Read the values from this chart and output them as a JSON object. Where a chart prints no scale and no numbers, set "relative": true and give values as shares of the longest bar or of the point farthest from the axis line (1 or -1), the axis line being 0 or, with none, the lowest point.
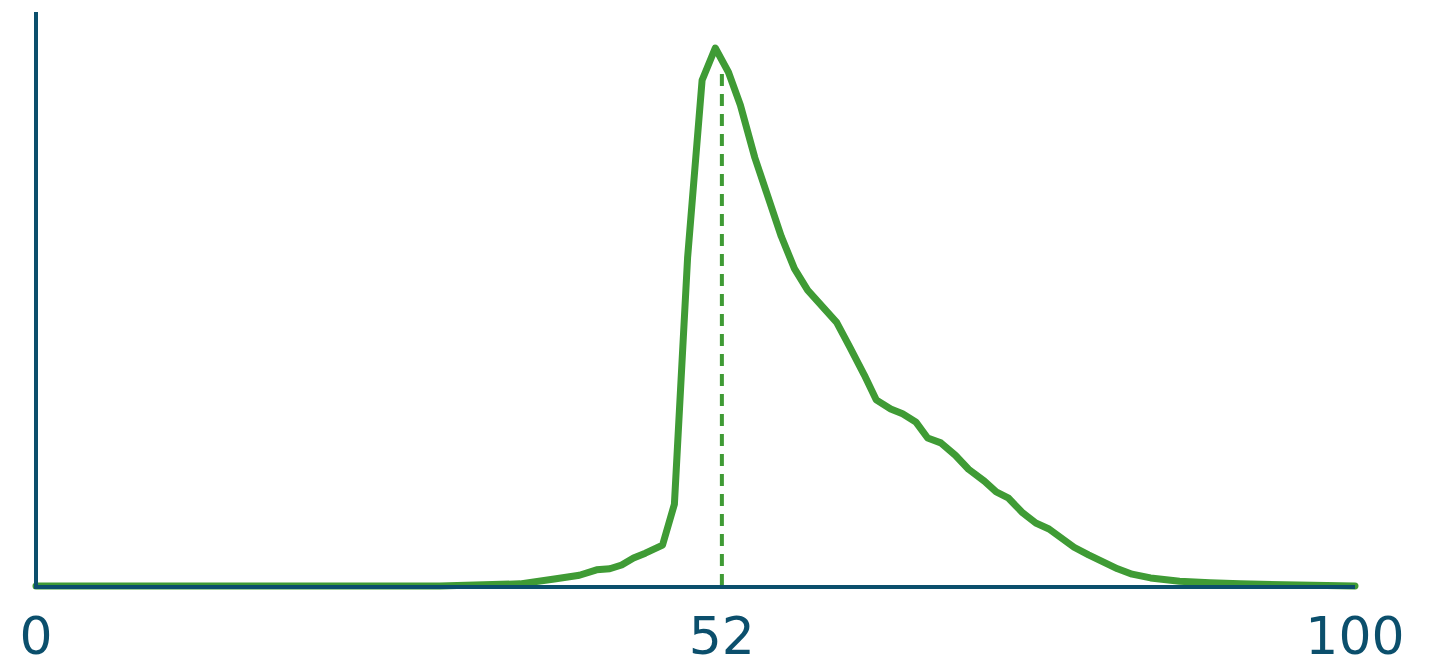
{
  "chart_data": {
    "type": "line",
    "relative": true,
    "xlim": [
      0,
      100
    ],
    "xticks": [
      0,
      52,
      100
    ],
    "x": [
      0,
      30.6,
      36.7,
      39.3,
      41.2,
      42.5,
      43.5,
      44.4,
      45.3,
      46.2,
      47.5,
      48.4,
      49.4,
      50.5,
      51.5,
      52.5,
      53.4,
      54.5,
      56.5,
      57.5,
      58.5,
      60.7,
      61.7,
      62.8,
      63.7,
      64.8,
      65.7,
      66.7,
      67.6,
      68.6,
      69.7,
      70.7,
      71.9,
      72.8,
      73.7,
      74.8,
      75.8,
      76.8,
      78.7,
      79.8,
      80.9,
      82.0,
      83.1,
      84.5,
      86.7,
      89.0,
      91.3,
      100
    ],
    "series": [
      {
        "color": "#3f9b35",
        "values": [
          0,
          0,
          0.004,
          0.013,
          0.02,
          0.03,
          0.032,
          0.039,
          0.052,
          0.061,
          0.076,
          0.152,
          0.61,
          0.94,
          1,
          0.955,
          0.894,
          0.796,
          0.65,
          0.59,
          0.55,
          0.49,
          0.444,
          0.392,
          0.346,
          0.329,
          0.32,
          0.305,
          0.275,
          0.266,
          0.243,
          0.217,
          0.195,
          0.175,
          0.164,
          0.136,
          0.117,
          0.106,
          0.072,
          0.058,
          0.045,
          0.032,
          0.022,
          0.015,
          0.009,
          0.006,
          0.004,
          0
        ]
      }
    ],
    "ref_lines": [
      {
        "axis": "x",
        "value": 52,
        "color": "#3f9b35",
        "line_style": "dashed"
      }
    ],
    "grid": false,
    "marker": "none",
    "line_style": "solid"
  }
}
